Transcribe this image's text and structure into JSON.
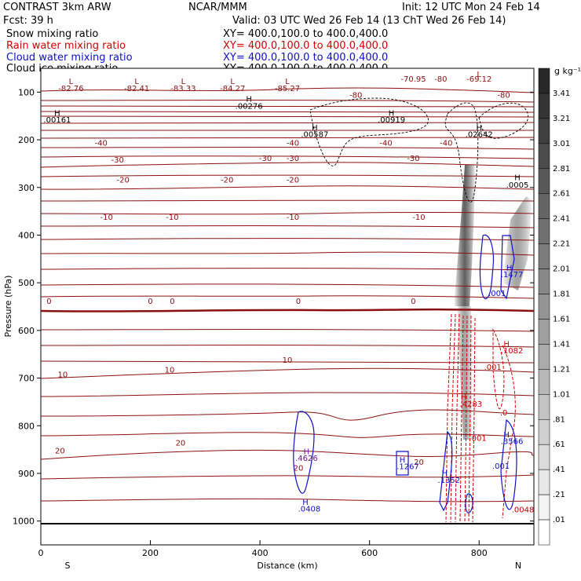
{
  "header": {
    "title": "CONTRAST  3km ARW",
    "center": "NCAR/MMM",
    "init": "Init: 12 UTC Mon 24 Feb 14",
    "fcst": "Fcst:   39 h",
    "valid": "Valid: 03 UTC Wed 26 Feb 14 (13 ChT Wed 26 Feb 14)"
  },
  "legend": [
    {
      "name": "Snow mixing ratio",
      "xy": "XY= 400.0,100.0 to 400.0,400.0",
      "color": "#000000"
    },
    {
      "name": "Rain water mixing ratio",
      "xy": "XY= 400.0,100.0 to 400.0,400.0",
      "color": "#d40000"
    },
    {
      "name": "Cloud water mixing ratio",
      "xy": "XY= 400.0,100.0 to 400.0,400.0",
      "color": "#1010c8"
    },
    {
      "name": "Cloud ice mixing ratio",
      "xy": "XY= 400.0,100.0 to 400.0,400.0",
      "color": "#000000"
    }
  ],
  "chart_data": {
    "type": "heatmap",
    "xlabel": "Distance (km)",
    "ylabel": "Pressure (hPa)",
    "xlim": [
      0,
      900
    ],
    "ylim": [
      1050,
      50
    ],
    "x_ticks": [
      0,
      200,
      400,
      600,
      800
    ],
    "y_ticks": [
      100,
      200,
      300,
      400,
      500,
      600,
      700,
      800,
      900,
      1000
    ],
    "end_labels": {
      "left": "S",
      "right": "N"
    },
    "colorbar": {
      "unit": "g kg⁻¹",
      "labels": [
        "3.41",
        "3.21",
        "3.01",
        "2.81",
        "2.61",
        "2.41",
        "2.21",
        "2.01",
        "1.81",
        "1.61",
        "1.41",
        "1.21",
        "1.01",
        ".81",
        ".61",
        ".41",
        ".21",
        ".01"
      ]
    },
    "temperature_contours": [
      {
        "level": -80,
        "pressure": 115
      },
      {
        "level": -40,
        "pressure": 215
      },
      {
        "level": -30,
        "pressure": 250
      },
      {
        "level": -20,
        "pressure": 290
      },
      {
        "level": -10,
        "pressure": 370
      },
      {
        "level": 0,
        "pressure": 545
      },
      {
        "level": 10,
        "pressure": 690
      },
      {
        "level": 20,
        "pressure": 860
      }
    ],
    "annotations": [
      {
        "text": "L",
        "x": 55,
        "p": 83,
        "color": "#8b1010"
      },
      {
        "text": "-82.76",
        "x": 55,
        "p": 98,
        "color": "#8b1010"
      },
      {
        "text": "L",
        "x": 175,
        "p": 83,
        "color": "#8b1010"
      },
      {
        "text": "-82.41",
        "x": 175,
        "p": 98,
        "color": "#8b1010"
      },
      {
        "text": "L",
        "x": 260,
        "p": 83,
        "color": "#8b1010"
      },
      {
        "text": "-83.33",
        "x": 260,
        "p": 98,
        "color": "#8b1010"
      },
      {
        "text": "L",
        "x": 350,
        "p": 83,
        "color": "#8b1010"
      },
      {
        "text": "-84.27",
        "x": 350,
        "p": 98,
        "color": "#8b1010"
      },
      {
        "text": "L",
        "x": 450,
        "p": 83,
        "color": "#8b1010"
      },
      {
        "text": "-85.27",
        "x": 450,
        "p": 98,
        "color": "#8b1010"
      },
      {
        "text": "-70.95",
        "x": 680,
        "p": 78,
        "color": "#8b1010"
      },
      {
        "text": "-80",
        "x": 730,
        "p": 78,
        "color": "#8b1010"
      },
      {
        "text": "L",
        "x": 800,
        "p": 68,
        "color": "#8b1010"
      },
      {
        "text": "-69.12",
        "x": 800,
        "p": 78,
        "color": "#8b1010"
      },
      {
        "text": "-80",
        "x": 575,
        "p": 112,
        "color": "#8b1010"
      },
      {
        "text": "-80",
        "x": 845,
        "p": 112,
        "color": "#8b1010"
      },
      {
        "text": "H",
        "x": 30,
        "p": 150,
        "color": "#000000"
      },
      {
        "text": ".00161",
        "x": 30,
        "p": 164,
        "color": "#000000"
      },
      {
        "text": "H",
        "x": 380,
        "p": 120,
        "color": "#000000"
      },
      {
        "text": ".00276",
        "x": 380,
        "p": 135,
        "color": "#000000"
      },
      {
        "text": "H",
        "x": 640,
        "p": 150,
        "color": "#000000"
      },
      {
        "text": ".00919",
        "x": 640,
        "p": 164,
        "color": "#000000"
      },
      {
        "text": "H",
        "x": 500,
        "p": 180,
        "color": "#000000"
      },
      {
        "text": ".00587",
        "x": 500,
        "p": 194,
        "color": "#000000"
      },
      {
        "text": "H",
        "x": 800,
        "p": 180,
        "color": "#000000"
      },
      {
        "text": ".02642",
        "x": 800,
        "p": 194,
        "color": "#000000"
      },
      {
        "text": "H",
        "x": 870,
        "p": 285,
        "color": "#000000"
      },
      {
        "text": ".0005",
        "x": 870,
        "p": 300,
        "color": "#000000"
      },
      {
        "text": "-40",
        "x": 110,
        "p": 212,
        "color": "#8b1010"
      },
      {
        "text": "-40",
        "x": 460,
        "p": 212,
        "color": "#8b1010"
      },
      {
        "text": "-40",
        "x": 630,
        "p": 212,
        "color": "#8b1010"
      },
      {
        "text": "-40",
        "x": 740,
        "p": 212,
        "color": "#8b1010"
      },
      {
        "text": "-30",
        "x": 140,
        "p": 248,
        "color": "#8b1010"
      },
      {
        "text": "-30",
        "x": 410,
        "p": 244,
        "color": "#8b1010"
      },
      {
        "text": "-30",
        "x": 460,
        "p": 244,
        "color": "#8b1010"
      },
      {
        "text": "-30",
        "x": 680,
        "p": 244,
        "color": "#8b1010"
      },
      {
        "text": "-20",
        "x": 150,
        "p": 290,
        "color": "#8b1010"
      },
      {
        "text": "-20",
        "x": 340,
        "p": 290,
        "color": "#8b1010"
      },
      {
        "text": "-20",
        "x": 460,
        "p": 290,
        "color": "#8b1010"
      },
      {
        "text": "-10",
        "x": 120,
        "p": 368,
        "color": "#8b1010"
      },
      {
        "text": "-10",
        "x": 240,
        "p": 368,
        "color": "#8b1010"
      },
      {
        "text": "-10",
        "x": 460,
        "p": 368,
        "color": "#8b1010"
      },
      {
        "text": "-10",
        "x": 690,
        "p": 368,
        "color": "#8b1010"
      },
      {
        "text": "0",
        "x": 15,
        "p": 544,
        "color": "#8b1010"
      },
      {
        "text": "0",
        "x": 200,
        "p": 544,
        "color": "#8b1010"
      },
      {
        "text": "0",
        "x": 240,
        "p": 544,
        "color": "#8b1010"
      },
      {
        "text": "0",
        "x": 470,
        "p": 544,
        "color": "#8b1010"
      },
      {
        "text": "0",
        "x": 680,
        "p": 544,
        "color": "#8b1010"
      },
      {
        "text": "10",
        "x": 40,
        "p": 698,
        "color": "#8b1010"
      },
      {
        "text": "10",
        "x": 235,
        "p": 688,
        "color": "#8b1010"
      },
      {
        "text": "10",
        "x": 450,
        "p": 668,
        "color": "#8b1010"
      },
      {
        "text": "20",
        "x": 35,
        "p": 858,
        "color": "#8b1010"
      },
      {
        "text": "20",
        "x": 255,
        "p": 842,
        "color": "#8b1010"
      },
      {
        "text": "20",
        "x": 470,
        "p": 894,
        "color": "#8b1010"
      },
      {
        "text": "20",
        "x": 690,
        "p": 882,
        "color": "#8b1010"
      },
      {
        "text": "H",
        "x": 855,
        "p": 474,
        "color": "#1010c8"
      },
      {
        "text": ".1477",
        "x": 860,
        "p": 488,
        "color": "#1010c8"
      },
      {
        "text": ".001",
        "x": 833,
        "p": 528,
        "color": "#1010c8"
      },
      {
        "text": "H",
        "x": 850,
        "p": 634,
        "color": "#d40000"
      },
      {
        "text": ".1082",
        "x": 860,
        "p": 648,
        "color": "#d40000"
      },
      {
        "text": ".001",
        "x": 825,
        "p": 683,
        "color": "#d40000"
      },
      {
        "text": "H",
        "x": 772,
        "p": 745,
        "color": "#d40000"
      },
      {
        "text": ".4283",
        "x": 785,
        "p": 760,
        "color": "#d40000"
      },
      {
        "text": ".0",
        "x": 845,
        "p": 778,
        "color": "#d40000"
      },
      {
        "text": "001",
        "x": 800,
        "p": 832,
        "color": "#d40000"
      },
      {
        "text": "H",
        "x": 850,
        "p": 824,
        "color": "#1010c8"
      },
      {
        "text": ".3566",
        "x": 860,
        "p": 838,
        "color": "#1010c8"
      },
      {
        "text": "H",
        "x": 485,
        "p": 860,
        "color": "#7010a0"
      },
      {
        "text": ".4626",
        "x": 485,
        "p": 874,
        "color": "#7010a0"
      },
      {
        "text": "H",
        "x": 660,
        "p": 877,
        "color": "#1010c8"
      },
      {
        "text": ".1267",
        "x": 670,
        "p": 891,
        "color": "#1010c8"
      },
      {
        "text": ".001",
        "x": 840,
        "p": 890,
        "color": "#1010c8"
      },
      {
        "text": "H",
        "x": 737,
        "p": 905,
        "color": "#1010c8"
      },
      {
        "text": ".1352",
        "x": 745,
        "p": 920,
        "color": "#1010c8"
      },
      {
        "text": "H",
        "x": 483,
        "p": 966,
        "color": "#1010c8"
      },
      {
        "text": ".0408",
        "x": 490,
        "p": 980,
        "color": "#1010c8"
      },
      {
        "text": ".0048",
        "x": 880,
        "p": 982,
        "color": "#d40000"
      }
    ]
  }
}
